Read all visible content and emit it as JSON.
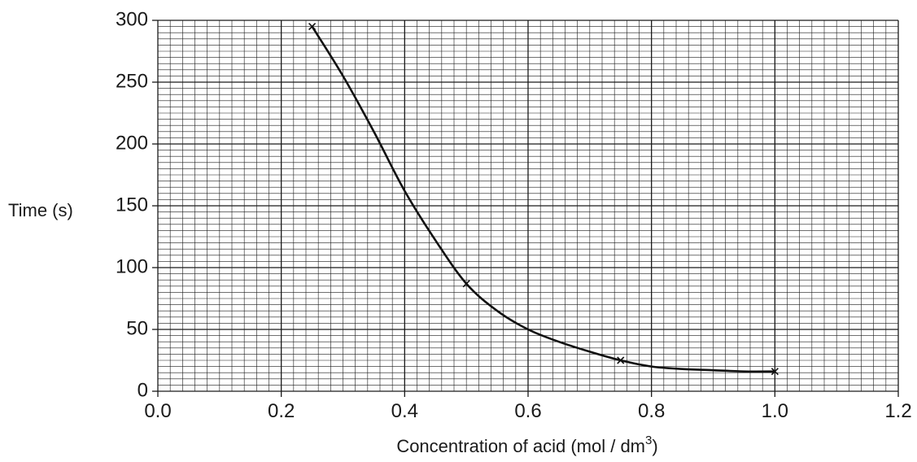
{
  "chart_data": {
    "type": "line",
    "title": "",
    "xlabel": "Concentration of acid (mol / dm",
    "xlabel_sup": "3",
    "xlabel_close": ")",
    "ylabel": "Time (s)",
    "xlim": [
      0.0,
      1.2
    ],
    "ylim": [
      0,
      300
    ],
    "x_ticks": [
      "0.0",
      "0.2",
      "0.4",
      "0.6",
      "0.8",
      "1.0",
      "1.2"
    ],
    "y_ticks": [
      "0",
      "50",
      "100",
      "150",
      "200",
      "250",
      "300"
    ],
    "grid": true,
    "series": [
      {
        "points": [
          {
            "x": 0.25,
            "y": 295
          },
          {
            "x": 0.5,
            "y": 87
          },
          {
            "x": 0.75,
            "y": 25
          },
          {
            "x": 1.0,
            "y": 16
          }
        ],
        "curve": [
          {
            "x": 0.25,
            "y": 295
          },
          {
            "x": 0.3,
            "y": 255
          },
          {
            "x": 0.35,
            "y": 210
          },
          {
            "x": 0.4,
            "y": 162
          },
          {
            "x": 0.45,
            "y": 122
          },
          {
            "x": 0.5,
            "y": 87
          },
          {
            "x": 0.55,
            "y": 65
          },
          {
            "x": 0.6,
            "y": 50
          },
          {
            "x": 0.65,
            "y": 40
          },
          {
            "x": 0.7,
            "y": 32
          },
          {
            "x": 0.75,
            "y": 25
          },
          {
            "x": 0.8,
            "y": 20
          },
          {
            "x": 0.85,
            "y": 18
          },
          {
            "x": 0.9,
            "y": 17
          },
          {
            "x": 0.95,
            "y": 16
          },
          {
            "x": 1.0,
            "y": 16
          }
        ]
      }
    ],
    "colors": {
      "grid": "#1a1a1a",
      "line": "#111111"
    }
  }
}
